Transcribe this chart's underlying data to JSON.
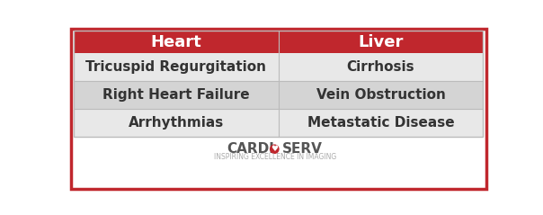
{
  "header_labels": [
    "Heart",
    "Liver"
  ],
  "rows": [
    [
      "Tricuspid Regurgitation",
      "Cirrhosis"
    ],
    [
      "Right Heart Failure",
      "Vein Obstruction"
    ],
    [
      "Arrhythmias",
      "Metastatic Disease"
    ]
  ],
  "header_bg_color": "#C0272D",
  "header_text_color": "#FFFFFF",
  "row_bg_color_odd": "#E8E8E8",
  "row_bg_color_even": "#D4D4D4",
  "cell_text_color": "#333333",
  "border_color": "#C0272D",
  "divider_color": "#BBBBBB",
  "background_color": "#FFFFFF",
  "cardioserv_left_color": "#555555",
  "cardioserv_right_color": "#555555",
  "cardioserv_heart_color": "#C0272D",
  "subtitle_text": "INSPIRING EXCELLENCE IN IMAGING",
  "subtitle_color": "#AAAAAA",
  "header_font_size": 13,
  "cell_font_size": 11,
  "logo_font_size": 11,
  "subtitle_font_size": 5.5
}
